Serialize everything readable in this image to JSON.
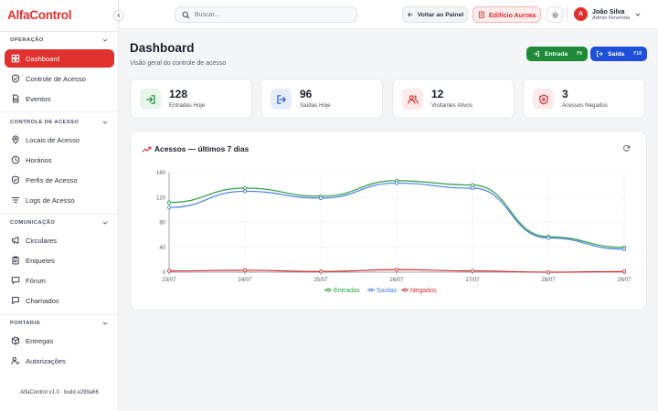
{
  "app": {
    "logo": "AlfaControl",
    "footer": "AlfaControl v1.0 · build e299a66"
  },
  "sidebar": {
    "sections": [
      {
        "label": "OPERAÇÃO",
        "items": [
          {
            "label": "Dashboard",
            "icon": "dashboard-icon",
            "active": true
          },
          {
            "label": "Controle de Acesso",
            "icon": "shield-icon"
          },
          {
            "label": "Eventos",
            "icon": "document-icon"
          }
        ]
      },
      {
        "label": "CONTROLE DE ACESSO",
        "items": [
          {
            "label": "Locais de Acesso",
            "icon": "map-pin-icon"
          },
          {
            "label": "Horários",
            "icon": "clock-icon"
          },
          {
            "label": "Perfis de Acesso",
            "icon": "shield-icon"
          },
          {
            "label": "Logs de Acesso",
            "icon": "filter-list-icon"
          }
        ]
      },
      {
        "label": "COMUNICAÇÃO",
        "items": [
          {
            "label": "Circulares",
            "icon": "megaphone-icon"
          },
          {
            "label": "Enquetes",
            "icon": "clipboard-icon"
          },
          {
            "label": "Fórum",
            "icon": "chat-icon"
          },
          {
            "label": "Chamados",
            "icon": "message-square-icon"
          }
        ]
      },
      {
        "label": "PORTARIA",
        "items": [
          {
            "label": "Entregas",
            "icon": "package-icon"
          },
          {
            "label": "Autorizações",
            "icon": "user-check-icon"
          }
        ]
      }
    ]
  },
  "header": {
    "search_placeholder": "Buscar...",
    "back_label": "Voltar ao Painel",
    "building_label": "Edifício Aurora",
    "user": {
      "initial": "A",
      "name": "João Silva",
      "role": "Admin Revenda"
    }
  },
  "page": {
    "title": "Dashboard",
    "subtitle": "Visão geral do controle de acesso",
    "entrada_label": "Entrada",
    "entrada_key": "F9",
    "saida_label": "Saída",
    "saida_key": "F10"
  },
  "kpis": [
    {
      "value": "128",
      "label": "Entradas Hoje",
      "color": "#1f8a3a",
      "bg": "#e7f5ea",
      "icon": "login-icon"
    },
    {
      "value": "96",
      "label": "Saídas Hoje",
      "color": "#2355d8",
      "bg": "#e6edfb",
      "icon": "logout-icon"
    },
    {
      "value": "12",
      "label": "Visitantes Ativos",
      "color": "#d43030",
      "bg": "#fdeaea",
      "icon": "users-icon"
    },
    {
      "value": "3",
      "label": "Acessos Negados",
      "color": "#d43030",
      "bg": "#fdeaea",
      "icon": "shield-x-icon"
    }
  ],
  "chart_data": {
    "type": "line",
    "title": "Acessos — últimos 7 dias",
    "categories": [
      "23/07",
      "24/07",
      "25/07",
      "26/07",
      "27/07",
      "28/07",
      "29/07"
    ],
    "yticks": [
      0,
      40,
      80,
      120,
      160
    ],
    "ylim": [
      0,
      160
    ],
    "grid": true,
    "legend": "bottom",
    "series": [
      {
        "name": "Entradas",
        "color": "#2e9e45",
        "values": [
          112,
          135,
          122,
          147,
          140,
          57,
          40
        ]
      },
      {
        "name": "Saídas",
        "color": "#4a7fe0",
        "values": [
          104,
          130,
          119,
          143,
          135,
          55,
          37
        ]
      },
      {
        "name": "Negados",
        "color": "#d43030",
        "values": [
          2,
          3,
          1,
          4,
          2,
          0,
          1
        ]
      }
    ]
  }
}
